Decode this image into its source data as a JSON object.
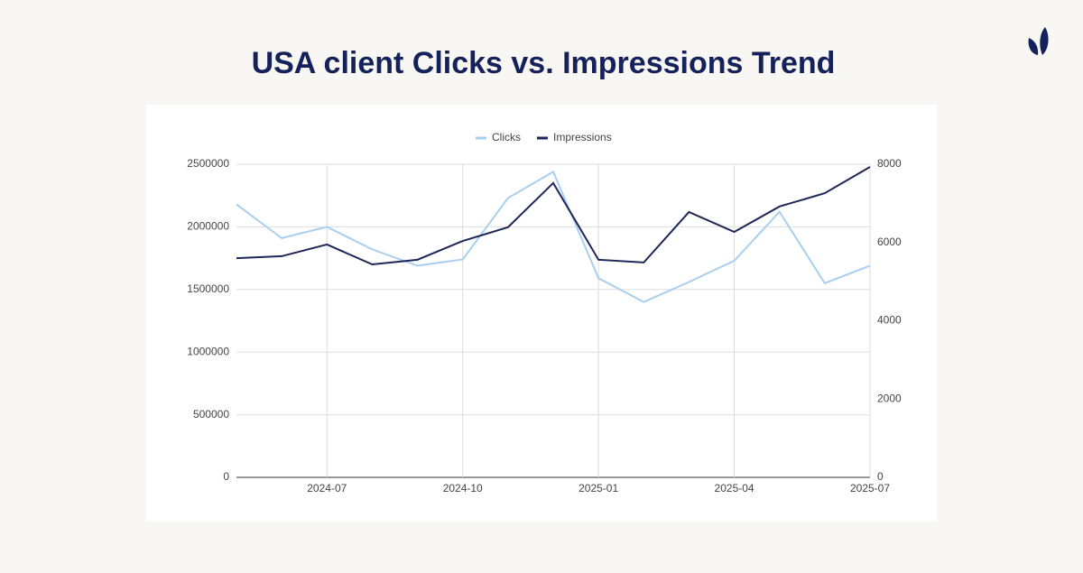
{
  "chart_data": {
    "type": "line",
    "title": "USA client Clicks vs. Impressions Trend",
    "x": [
      "2024-05",
      "2024-06",
      "2024-07",
      "2024-08",
      "2024-09",
      "2024-10",
      "2024-11",
      "2024-12",
      "2025-01",
      "2025-02",
      "2025-03",
      "2025-04",
      "2025-05",
      "2025-06",
      "2025-07"
    ],
    "xlim": [
      "2024-05",
      "2025-07"
    ],
    "xticks": [
      "2024-07",
      "2024-10",
      "2025-01",
      "2025-04",
      "2025-07"
    ],
    "series": [
      {
        "name": "Clicks",
        "color": "#a9cff0",
        "values": [
          2180000,
          1910000,
          2000000,
          1820000,
          1690000,
          1740000,
          2230000,
          2440000,
          1590000,
          1400000,
          1560000,
          1730000,
          2120000,
          1550000,
          1690000
        ]
      },
      {
        "name": "Impressions",
        "color": "#1c2657",
        "axis": "y2",
        "values": [
          5600,
          5650,
          5950,
          5440,
          5560,
          6040,
          6390,
          7520,
          5560,
          5490,
          6780,
          6270,
          6920,
          7260,
          7930
        ]
      }
    ],
    "ylim": [
      0,
      2500000
    ],
    "yticks": [
      0,
      500000,
      1000000,
      1500000,
      2000000,
      2500000
    ],
    "y2lim": [
      0,
      8000
    ],
    "y2ticks": [
      0,
      2000,
      4000,
      6000,
      8000
    ],
    "grid": true,
    "legend": "top"
  }
}
